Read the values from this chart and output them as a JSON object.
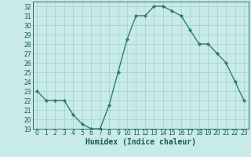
{
  "x": [
    0,
    1,
    2,
    3,
    4,
    5,
    6,
    7,
    8,
    9,
    10,
    11,
    12,
    13,
    14,
    15,
    16,
    17,
    18,
    19,
    20,
    21,
    22,
    23
  ],
  "y": [
    23,
    22,
    22,
    22,
    20.5,
    19.5,
    19,
    19,
    21.5,
    25,
    28.5,
    31,
    31,
    32,
    32,
    31.5,
    31,
    29.5,
    28,
    28,
    27,
    26,
    24,
    22
  ],
  "line_color": "#2e7d6e",
  "marker_color": "#2e7d6e",
  "bg_color": "#c8eae8",
  "grid_color": "#a0d0cc",
  "xlabel": "Humidex (Indice chaleur)",
  "xlim": [
    -0.5,
    23.5
  ],
  "ylim": [
    19,
    32.5
  ],
  "yticks": [
    19,
    20,
    21,
    22,
    23,
    24,
    25,
    26,
    27,
    28,
    29,
    30,
    31,
    32
  ],
  "xticks": [
    0,
    1,
    2,
    3,
    4,
    5,
    6,
    7,
    8,
    9,
    10,
    11,
    12,
    13,
    14,
    15,
    16,
    17,
    18,
    19,
    20,
    21,
    22,
    23
  ],
  "tick_label_color": "#1a5c50",
  "xlabel_color": "#1a5c50",
  "xlabel_fontsize": 7,
  "tick_fontsize": 5.5,
  "marker_size": 2.2,
  "line_width": 1.0
}
